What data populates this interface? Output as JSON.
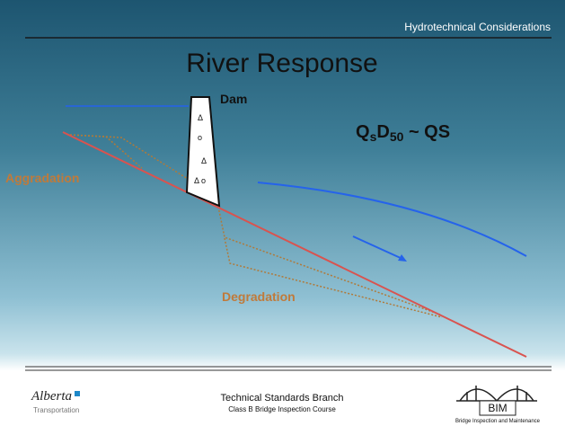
{
  "header": {
    "section": "Hydrotechnical Considerations",
    "title": "River Response"
  },
  "diagram": {
    "dam_label": "Dam",
    "formula": [
      {
        "text": "Q",
        "style": "normal"
      },
      {
        "text": "s",
        "style": "sub"
      },
      {
        "text": "D",
        "style": "normal"
      },
      {
        "text": "50",
        "style": "sub"
      },
      {
        "text": " ~ QS",
        "style": "normal"
      }
    ],
    "aggradation_label": "Aggradation",
    "degradation_label": "Degradation"
  },
  "footer": {
    "logo_name": "Alberta",
    "logo_sub": "Transportation",
    "line1": "Technical Standards Branch",
    "line2": "Class B Bridge Inspection Course",
    "badge": "BIM",
    "badge_sub": "Bridge Inspection and Maintenance"
  }
}
